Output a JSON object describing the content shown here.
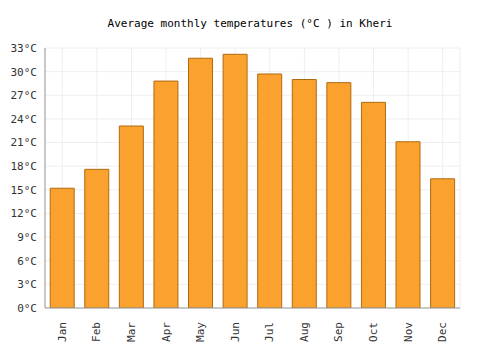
{
  "chart_data": {
    "type": "bar",
    "title": "Average monthly temperatures (°C ) in Kheri",
    "categories": [
      "Jan",
      "Feb",
      "Mar",
      "Apr",
      "May",
      "Jun",
      "Jul",
      "Aug",
      "Sep",
      "Oct",
      "Nov",
      "Dec"
    ],
    "values": [
      15.2,
      17.6,
      23.1,
      28.8,
      31.7,
      32.2,
      29.7,
      29.0,
      28.6,
      26.1,
      21.1,
      16.4
    ],
    "color": "#fba22e",
    "ylim": [
      0,
      33
    ],
    "yticks": [
      {
        "value": 0,
        "label": "0°C"
      },
      {
        "value": 3,
        "label": "3°C"
      },
      {
        "value": 6,
        "label": "6°C"
      },
      {
        "value": 9,
        "label": "9°C"
      },
      {
        "value": 12,
        "label": "12°C"
      },
      {
        "value": 15,
        "label": "15°C"
      },
      {
        "value": 18,
        "label": "18°C"
      },
      {
        "value": 21,
        "label": "21°C"
      },
      {
        "value": 24,
        "label": "24°C"
      },
      {
        "value": 27,
        "label": "27°C"
      },
      {
        "value": 30,
        "label": "30°C"
      },
      {
        "value": 33,
        "label": "33°C"
      }
    ],
    "grid": true
  }
}
